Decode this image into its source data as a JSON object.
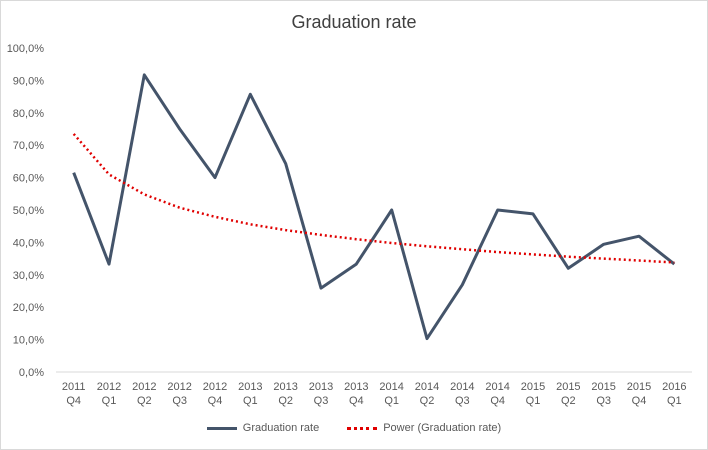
{
  "chart_data": {
    "type": "line",
    "title": "Graduation rate",
    "xlabel": "",
    "ylabel": "",
    "ylim": [
      0,
      100
    ],
    "yticks": [
      "0,0%",
      "10,0%",
      "20,0%",
      "30,0%",
      "40,0%",
      "50,0%",
      "60,0%",
      "70,0%",
      "80,0%",
      "90,0%",
      "100,0%"
    ],
    "categories": [
      [
        "2011",
        "Q4"
      ],
      [
        "2012",
        "Q1"
      ],
      [
        "2012",
        "Q2"
      ],
      [
        "2012",
        "Q3"
      ],
      [
        "2012",
        "Q4"
      ],
      [
        "2013",
        "Q1"
      ],
      [
        "2013",
        "Q2"
      ],
      [
        "2013",
        "Q3"
      ],
      [
        "2013",
        "Q4"
      ],
      [
        "2014",
        "Q1"
      ],
      [
        "2014",
        "Q2"
      ],
      [
        "2014",
        "Q3"
      ],
      [
        "2014",
        "Q4"
      ],
      [
        "2015",
        "Q1"
      ],
      [
        "2015",
        "Q2"
      ],
      [
        "2015",
        "Q3"
      ],
      [
        "2015",
        "Q4"
      ],
      [
        "2016",
        "Q1"
      ]
    ],
    "series": [
      {
        "name": "Graduation rate",
        "color": "#44546a",
        "style": "solid",
        "values": [
          61.5,
          33.3,
          91.7,
          75.0,
          60.0,
          85.7,
          64.3,
          25.9,
          33.3,
          50.0,
          10.3,
          26.9,
          50.0,
          48.8,
          32.0,
          39.4,
          41.9,
          33.3
        ]
      },
      {
        "name": "Power (Graduation rate)",
        "color": "#e00000",
        "style": "dotted",
        "values": [
          73.5,
          61.0,
          54.8,
          50.7,
          47.9,
          45.6,
          43.8,
          42.3,
          41.0,
          39.8,
          38.8,
          37.9,
          37.0,
          36.3,
          35.6,
          35.0,
          34.4,
          33.8
        ]
      }
    ],
    "grid": false,
    "legend": "bottom"
  }
}
